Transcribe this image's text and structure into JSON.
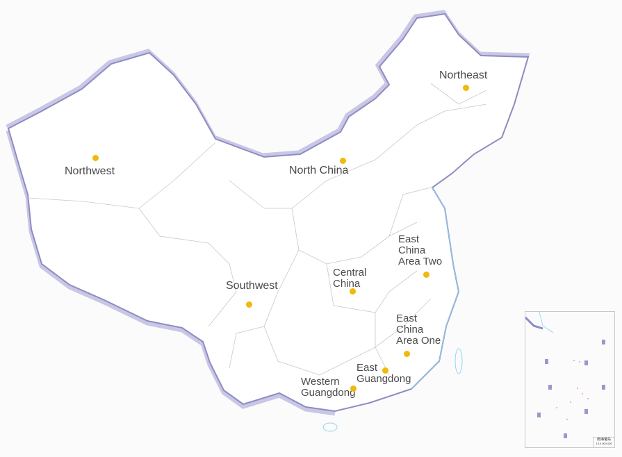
{
  "map": {
    "colors": {
      "land": "#ffffff",
      "border": "#9a98c8",
      "border_shadow": "#c9c7e6",
      "internal": "#c8c8c8",
      "marker": "#f0b90b",
      "sea": "#8fd3f0",
      "city": "#e0262a"
    },
    "regions": [
      {
        "id": "northwest",
        "label": "Northwest"
      },
      {
        "id": "north-china",
        "label": "North China"
      },
      {
        "id": "northeast",
        "label": "Northeast"
      },
      {
        "id": "southwest",
        "label": "Southwest"
      },
      {
        "id": "central-china",
        "label": "Central\nChina"
      },
      {
        "id": "east-china-two",
        "label": "East\nChina\nArea Two"
      },
      {
        "id": "east-china-one",
        "label": "East\nChina\nArea One"
      },
      {
        "id": "east-guangdong",
        "label": "East\nGuangdong"
      },
      {
        "id": "western-guangdong",
        "label": "Western\nGuangdong"
      }
    ],
    "inset": {
      "title": "南海诸岛",
      "scale": "1:14 000 000"
    }
  }
}
